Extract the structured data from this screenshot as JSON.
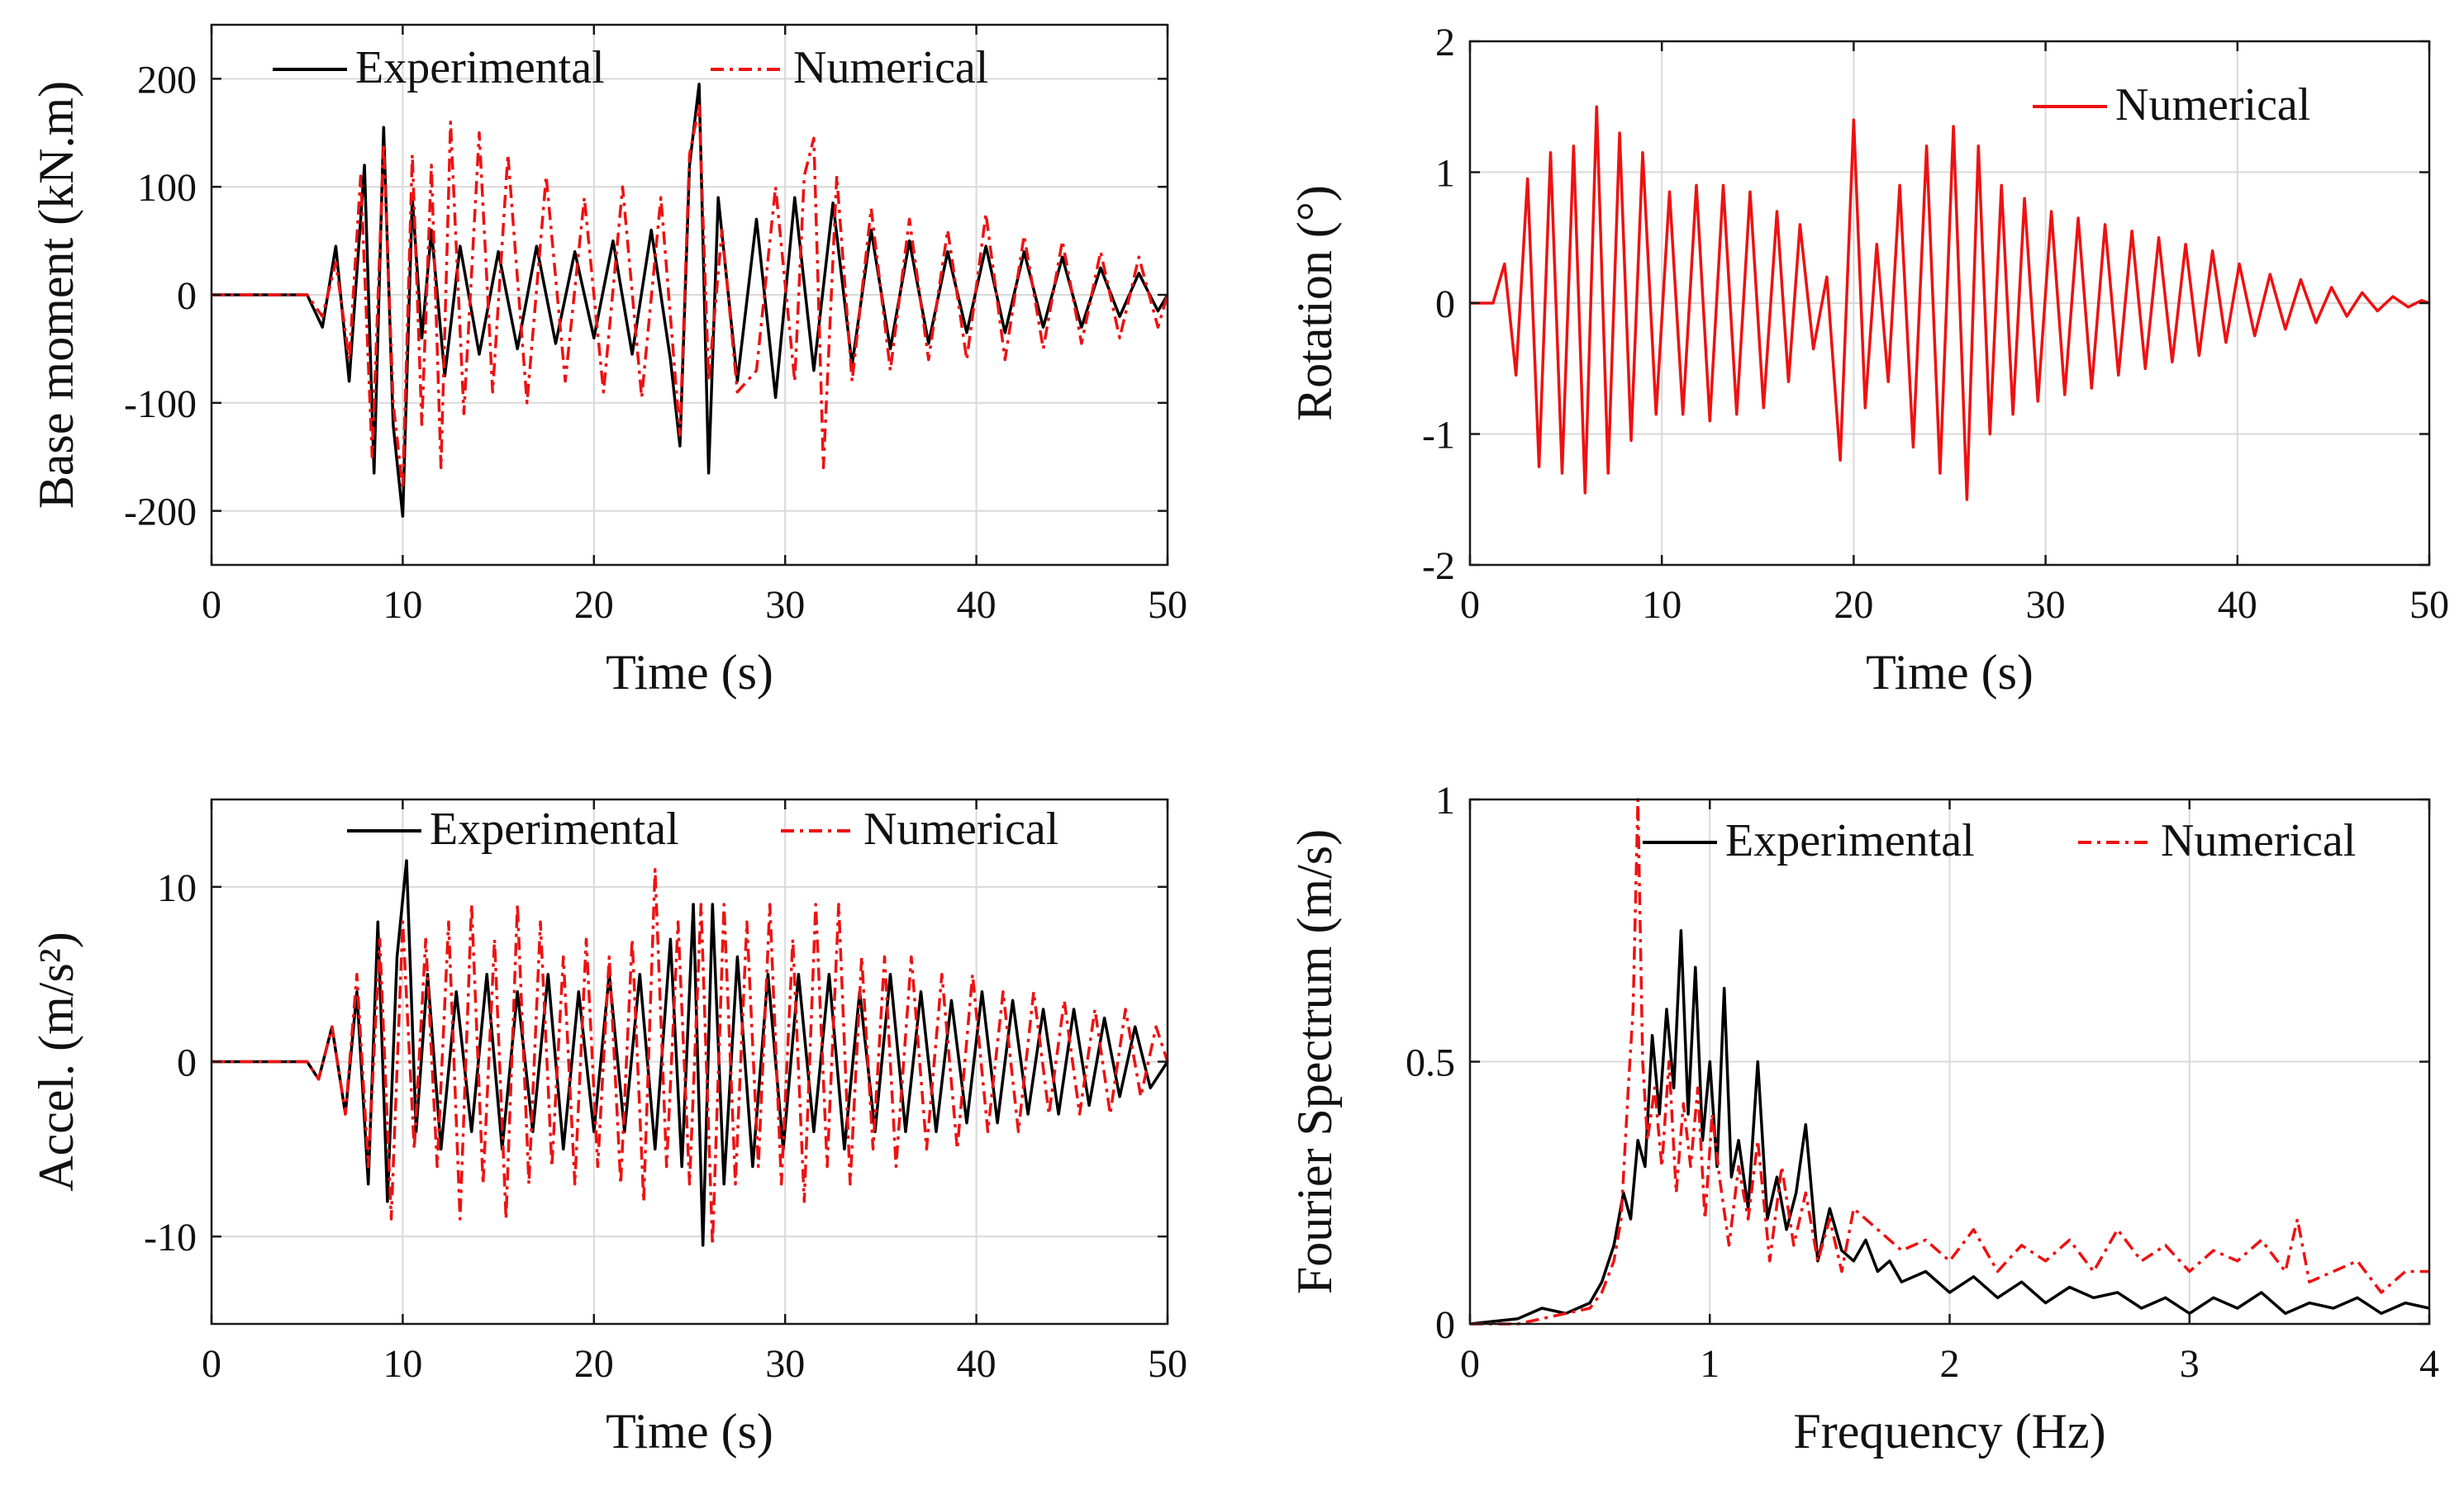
{
  "figure": {
    "colors": {
      "experimental": "#000000",
      "numerical": "#ee1111",
      "grid": "#d9d9d9",
      "axis": "#1a1a1a"
    }
  },
  "chart_data": [
    {
      "id": "base-moment",
      "type": "line",
      "title": "",
      "xlabel": "Time (s)",
      "ylabel": "Base moment (kN.m)",
      "xlim": [
        0,
        50
      ],
      "ylim": [
        -250,
        250
      ],
      "xticks": [
        0,
        10,
        20,
        30,
        40,
        50
      ],
      "yticks": [
        -200,
        -100,
        0,
        100,
        200
      ],
      "grid": true,
      "legend": {
        "placement": "top",
        "entries": [
          "Experimental",
          "Numerical"
        ]
      },
      "series": [
        {
          "name": "Experimental",
          "style": "solid",
          "color": "#000000",
          "x": [
            0,
            5,
            5.8,
            6.5,
            7.2,
            8.0,
            8.5,
            9.0,
            9.5,
            10.0,
            10.5,
            11.0,
            11.5,
            12.2,
            13.0,
            14.0,
            15.0,
            16.0,
            17.0,
            18.0,
            19.0,
            20.0,
            21.0,
            22.0,
            23.0,
            24.0,
            24.5,
            25.0,
            25.5,
            26.0,
            26.5,
            27.5,
            28.5,
            29.5,
            30.5,
            31.5,
            32.5,
            33.5,
            34.5,
            35.5,
            36.5,
            37.5,
            38.5,
            39.5,
            40.5,
            41.5,
            42.5,
            43.5,
            44.5,
            45.5,
            46.5,
            47.5,
            48.5,
            49.5,
            50
          ],
          "y": [
            0,
            0,
            -30,
            45,
            -80,
            120,
            -165,
            155,
            -120,
            -205,
            90,
            -40,
            60,
            -75,
            45,
            -55,
            40,
            -50,
            45,
            -45,
            40,
            -40,
            50,
            -55,
            60,
            -60,
            -140,
            120,
            195,
            -165,
            90,
            -80,
            70,
            -95,
            90,
            -70,
            85,
            -65,
            60,
            -50,
            50,
            -45,
            40,
            -35,
            45,
            -35,
            40,
            -30,
            35,
            -30,
            25,
            -20,
            20,
            -15,
            0
          ]
        },
        {
          "name": "Numerical",
          "style": "dashdot",
          "color": "#ee1111",
          "x": [
            0,
            5,
            5.8,
            6.5,
            7.2,
            7.8,
            8.4,
            9.0,
            9.5,
            10.0,
            10.5,
            11.0,
            11.5,
            12.0,
            12.5,
            13.2,
            14.0,
            14.7,
            15.5,
            16.5,
            17.5,
            18.5,
            19.5,
            20.5,
            21.5,
            22.5,
            23.5,
            24.5,
            25.0,
            25.5,
            26.0,
            26.7,
            27.5,
            28.5,
            29.5,
            30.5,
            31.0,
            31.5,
            32.0,
            32.7,
            33.5,
            34.5,
            35.5,
            36.5,
            37.5,
            38.5,
            39.5,
            40.5,
            41.5,
            42.5,
            43.5,
            44.5,
            45.5,
            46.5,
            47.5,
            48.5,
            49.5,
            50
          ],
          "y": [
            0,
            0,
            -20,
            30,
            -60,
            110,
            -150,
            140,
            -100,
            -180,
            130,
            -120,
            120,
            -160,
            160,
            -110,
            150,
            -90,
            130,
            -100,
            110,
            -80,
            90,
            -90,
            100,
            -95,
            90,
            -130,
            130,
            175,
            -80,
            60,
            -90,
            -70,
            100,
            -80,
            110,
            145,
            -160,
            110,
            -80,
            80,
            -70,
            70,
            -60,
            60,
            -60,
            75,
            -60,
            55,
            -50,
            50,
            -45,
            40,
            -40,
            35,
            -30,
            0
          ]
        }
      ]
    },
    {
      "id": "rotation",
      "type": "line",
      "title": "",
      "xlabel": "Time (s)",
      "ylabel": "Rotation (°)",
      "xlim": [
        0,
        50
      ],
      "ylim": [
        -2,
        2
      ],
      "xticks": [
        0,
        10,
        20,
        30,
        40,
        50
      ],
      "yticks": [
        -2,
        -1,
        0,
        1,
        2
      ],
      "grid": true,
      "legend": {
        "placement": "top-right",
        "entries": [
          "Numerical"
        ]
      },
      "series": [
        {
          "name": "Numerical",
          "style": "solid",
          "color": "#ee1111",
          "x": [
            0,
            1.2,
            1.8,
            2.4,
            3.0,
            3.6,
            4.2,
            4.8,
            5.4,
            6.0,
            6.6,
            7.2,
            7.8,
            8.4,
            9.0,
            9.7,
            10.4,
            11.1,
            11.8,
            12.5,
            13.2,
            13.9,
            14.6,
            15.3,
            16.0,
            16.6,
            17.2,
            17.9,
            18.6,
            19.3,
            20.0,
            20.6,
            21.2,
            21.8,
            22.4,
            23.1,
            23.8,
            24.5,
            25.2,
            25.9,
            26.5,
            27.1,
            27.7,
            28.3,
            28.9,
            29.6,
            30.3,
            31.0,
            31.7,
            32.4,
            33.1,
            33.8,
            34.5,
            35.2,
            35.9,
            36.6,
            37.3,
            38.0,
            38.7,
            39.4,
            40.1,
            40.9,
            41.7,
            42.5,
            43.3,
            44.1,
            44.9,
            45.7,
            46.5,
            47.3,
            48.1,
            48.9,
            49.6,
            50
          ],
          "y": [
            0,
            0,
            0.3,
            -0.55,
            0.95,
            -1.25,
            1.15,
            -1.3,
            1.2,
            -1.45,
            1.5,
            -1.3,
            1.3,
            -1.05,
            1.15,
            -0.85,
            0.85,
            -0.85,
            0.9,
            -0.9,
            0.9,
            -0.85,
            0.85,
            -0.8,
            0.7,
            -0.6,
            0.6,
            -0.35,
            0.2,
            -1.2,
            1.4,
            -0.8,
            0.45,
            -0.6,
            0.9,
            -1.1,
            1.2,
            -1.3,
            1.35,
            -1.5,
            1.2,
            -1.0,
            0.9,
            -0.85,
            0.8,
            -0.75,
            0.7,
            -0.7,
            0.65,
            -0.65,
            0.6,
            -0.55,
            0.55,
            -0.5,
            0.5,
            -0.45,
            0.45,
            -0.4,
            0.4,
            -0.3,
            0.3,
            -0.25,
            0.22,
            -0.2,
            0.18,
            -0.15,
            0.12,
            -0.1,
            0.08,
            -0.06,
            0.05,
            -0.03,
            0.02,
            0
          ]
        }
      ]
    },
    {
      "id": "acceleration",
      "type": "line",
      "title": "",
      "xlabel": "Time (s)",
      "ylabel": "Accel. (m/s²)",
      "xlim": [
        0,
        50
      ],
      "ylim": [
        -15,
        15
      ],
      "xticks": [
        0,
        10,
        20,
        30,
        40,
        50
      ],
      "yticks": [
        -10,
        0,
        10
      ],
      "grid": true,
      "legend": {
        "placement": "top",
        "entries": [
          "Experimental",
          "Numerical"
        ]
      },
      "series": [
        {
          "name": "Experimental",
          "style": "solid",
          "color": "#000000",
          "x": [
            0,
            5,
            5.6,
            6.3,
            7.0,
            7.6,
            8.2,
            8.7,
            9.2,
            9.7,
            10.2,
            10.7,
            11.3,
            12.0,
            12.8,
            13.6,
            14.4,
            15.2,
            16.0,
            16.8,
            17.6,
            18.4,
            19.2,
            20.0,
            20.8,
            21.6,
            22.4,
            23.2,
            24.0,
            24.6,
            25.2,
            25.7,
            26.2,
            26.8,
            27.5,
            28.3,
            29.1,
            29.9,
            30.7,
            31.5,
            32.3,
            33.1,
            33.9,
            34.7,
            35.5,
            36.3,
            37.1,
            37.9,
            38.7,
            39.5,
            40.3,
            41.1,
            41.9,
            42.7,
            43.5,
            44.3,
            45.1,
            45.9,
            46.7,
            47.5,
            48.3,
            49.1,
            50
          ],
          "y": [
            0,
            0,
            -1,
            2,
            -3,
            4,
            -7,
            8,
            -8,
            6,
            11.5,
            -4,
            5,
            -5,
            4,
            -4,
            5,
            -5,
            4,
            -4,
            5,
            -5,
            4,
            -4,
            5,
            -4,
            5,
            -5,
            7,
            -6,
            9,
            -10.5,
            9,
            -7,
            6,
            -6,
            5,
            -5,
            5,
            -4,
            5,
            -5,
            4,
            -4,
            5,
            -4,
            4,
            -4,
            3.5,
            -3.5,
            4,
            -3.5,
            3.5,
            -3,
            3,
            -3,
            3,
            -2.5,
            2.5,
            -2,
            2,
            -1.5,
            0
          ]
        },
        {
          "name": "Numerical",
          "style": "dashdot",
          "color": "#ee1111",
          "x": [
            0,
            5,
            5.6,
            6.3,
            7.0,
            7.6,
            8.2,
            8.8,
            9.4,
            10.0,
            10.6,
            11.2,
            11.8,
            12.4,
            13.0,
            13.6,
            14.2,
            14.8,
            15.4,
            16.0,
            16.6,
            17.2,
            17.8,
            18.4,
            19.0,
            19.6,
            20.2,
            20.8,
            21.4,
            22.0,
            22.6,
            23.2,
            23.8,
            24.4,
            25.0,
            25.6,
            26.2,
            26.8,
            27.4,
            28.0,
            28.6,
            29.2,
            29.8,
            30.4,
            31.0,
            31.6,
            32.2,
            32.8,
            33.4,
            34.0,
            34.6,
            35.2,
            35.8,
            36.6,
            37.4,
            38.2,
            39.0,
            39.8,
            40.6,
            41.4,
            42.2,
            43.0,
            43.8,
            44.6,
            45.4,
            46.2,
            47.0,
            47.8,
            48.6,
            49.4,
            50
          ],
          "y": [
            0,
            0,
            -1,
            2,
            -3,
            5,
            -6,
            7,
            -9,
            8,
            -5,
            7,
            -6,
            8,
            -9,
            9,
            -7,
            7,
            -9,
            9,
            -7,
            8,
            -6,
            6,
            -7,
            7,
            -6,
            6,
            -7,
            7,
            -8,
            11,
            -6,
            8,
            -7,
            9,
            -10.5,
            9,
            -7,
            8,
            -6,
            9,
            -7,
            7,
            -8,
            9,
            -6,
            9,
            -7,
            6,
            -5,
            6,
            -6,
            6,
            -5,
            5,
            -5,
            5,
            -4,
            4,
            -4,
            4,
            -3,
            3.5,
            -3,
            3,
            -3,
            3,
            -2,
            2,
            0
          ]
        }
      ]
    },
    {
      "id": "fourier-spectrum",
      "type": "line",
      "title": "",
      "xlabel": "Frequency (Hz)",
      "ylabel": "Fourier Spectrum (m/s)",
      "xlim": [
        0,
        4
      ],
      "ylim": [
        0,
        1
      ],
      "xticks": [
        0,
        1,
        2,
        3,
        4
      ],
      "yticks": [
        0,
        0.5,
        1
      ],
      "grid": true,
      "legend": {
        "placement": "top",
        "entries": [
          "Experimental",
          "Numerical"
        ]
      },
      "series": [
        {
          "name": "Experimental",
          "style": "solid",
          "color": "#000000",
          "x": [
            0,
            0.2,
            0.3,
            0.4,
            0.5,
            0.55,
            0.6,
            0.64,
            0.67,
            0.7,
            0.73,
            0.76,
            0.79,
            0.82,
            0.85,
            0.88,
            0.91,
            0.94,
            0.97,
            1.0,
            1.03,
            1.06,
            1.09,
            1.12,
            1.16,
            1.2,
            1.24,
            1.28,
            1.32,
            1.36,
            1.4,
            1.45,
            1.5,
            1.55,
            1.6,
            1.65,
            1.7,
            1.75,
            1.8,
            1.9,
            2.0,
            2.1,
            2.2,
            2.3,
            2.4,
            2.5,
            2.6,
            2.7,
            2.8,
            2.9,
            3.0,
            3.1,
            3.2,
            3.3,
            3.4,
            3.5,
            3.6,
            3.7,
            3.8,
            3.9,
            4.0
          ],
          "y": [
            0,
            0.01,
            0.03,
            0.02,
            0.04,
            0.08,
            0.15,
            0.25,
            0.2,
            0.35,
            0.3,
            0.55,
            0.4,
            0.6,
            0.45,
            0.75,
            0.4,
            0.68,
            0.35,
            0.5,
            0.3,
            0.64,
            0.28,
            0.35,
            0.22,
            0.5,
            0.2,
            0.28,
            0.18,
            0.25,
            0.38,
            0.12,
            0.22,
            0.14,
            0.12,
            0.16,
            0.1,
            0.12,
            0.08,
            0.1,
            0.06,
            0.09,
            0.05,
            0.08,
            0.04,
            0.07,
            0.05,
            0.06,
            0.03,
            0.05,
            0.02,
            0.05,
            0.03,
            0.06,
            0.02,
            0.04,
            0.03,
            0.05,
            0.02,
            0.04,
            0.03
          ]
        },
        {
          "name": "Numerical",
          "style": "dashdot",
          "color": "#ee1111",
          "x": [
            0,
            0.2,
            0.3,
            0.4,
            0.5,
            0.55,
            0.6,
            0.63,
            0.66,
            0.68,
            0.7,
            0.72,
            0.74,
            0.77,
            0.8,
            0.83,
            0.86,
            0.89,
            0.92,
            0.95,
            0.98,
            1.01,
            1.04,
            1.08,
            1.12,
            1.16,
            1.2,
            1.25,
            1.3,
            1.35,
            1.4,
            1.45,
            1.5,
            1.55,
            1.6,
            1.7,
            1.8,
            1.9,
            2.0,
            2.1,
            2.2,
            2.3,
            2.4,
            2.5,
            2.6,
            2.7,
            2.8,
            2.9,
            3.0,
            3.1,
            3.2,
            3.3,
            3.4,
            3.45,
            3.5,
            3.6,
            3.7,
            3.8,
            3.9,
            4.0
          ],
          "y": [
            0,
            0,
            0.01,
            0.02,
            0.03,
            0.06,
            0.12,
            0.2,
            0.45,
            0.6,
            1.0,
            0.5,
            0.35,
            0.45,
            0.3,
            0.5,
            0.25,
            0.42,
            0.3,
            0.45,
            0.2,
            0.4,
            0.28,
            0.15,
            0.3,
            0.2,
            0.35,
            0.12,
            0.3,
            0.15,
            0.25,
            0.12,
            0.2,
            0.1,
            0.22,
            0.18,
            0.14,
            0.16,
            0.12,
            0.18,
            0.1,
            0.15,
            0.12,
            0.16,
            0.1,
            0.18,
            0.12,
            0.15,
            0.1,
            0.14,
            0.12,
            0.16,
            0.1,
            0.2,
            0.08,
            0.1,
            0.12,
            0.06,
            0.1,
            0.1
          ]
        }
      ]
    }
  ]
}
